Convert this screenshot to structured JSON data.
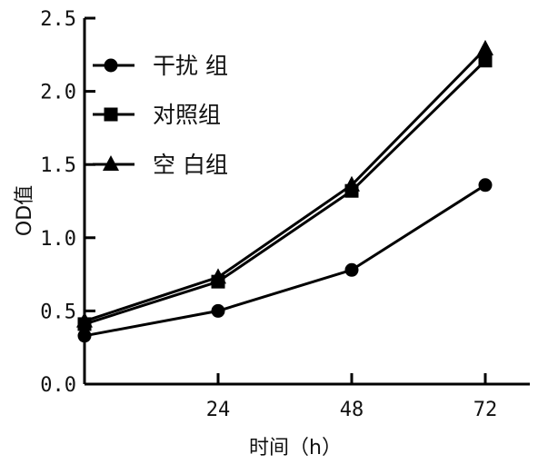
{
  "chart_data": {
    "type": "line",
    "xlabel": "时间（h）",
    "ylabel": "OD值",
    "x": [
      0,
      24,
      48,
      72
    ],
    "xticks": [
      "24",
      "48",
      "72"
    ],
    "yticks": [
      "0.0",
      "0.5",
      "1.0",
      "1.5",
      "2.0",
      "2.5"
    ],
    "xlim": [
      0,
      80
    ],
    "ylim": [
      0,
      2.5
    ],
    "grid": false,
    "legend_position": "top-left",
    "series": [
      {
        "name": "干扰 组",
        "marker": "circle",
        "values": [
          0.33,
          0.5,
          0.78,
          1.36
        ]
      },
      {
        "name": "对照组",
        "marker": "square",
        "values": [
          0.41,
          0.7,
          1.32,
          2.21
        ]
      },
      {
        "name": "空 白组",
        "marker": "triangle",
        "values": [
          0.43,
          0.73,
          1.36,
          2.29
        ]
      }
    ],
    "colors": {
      "line": "#000000",
      "text": "#111111",
      "background": "#ffffff"
    }
  }
}
